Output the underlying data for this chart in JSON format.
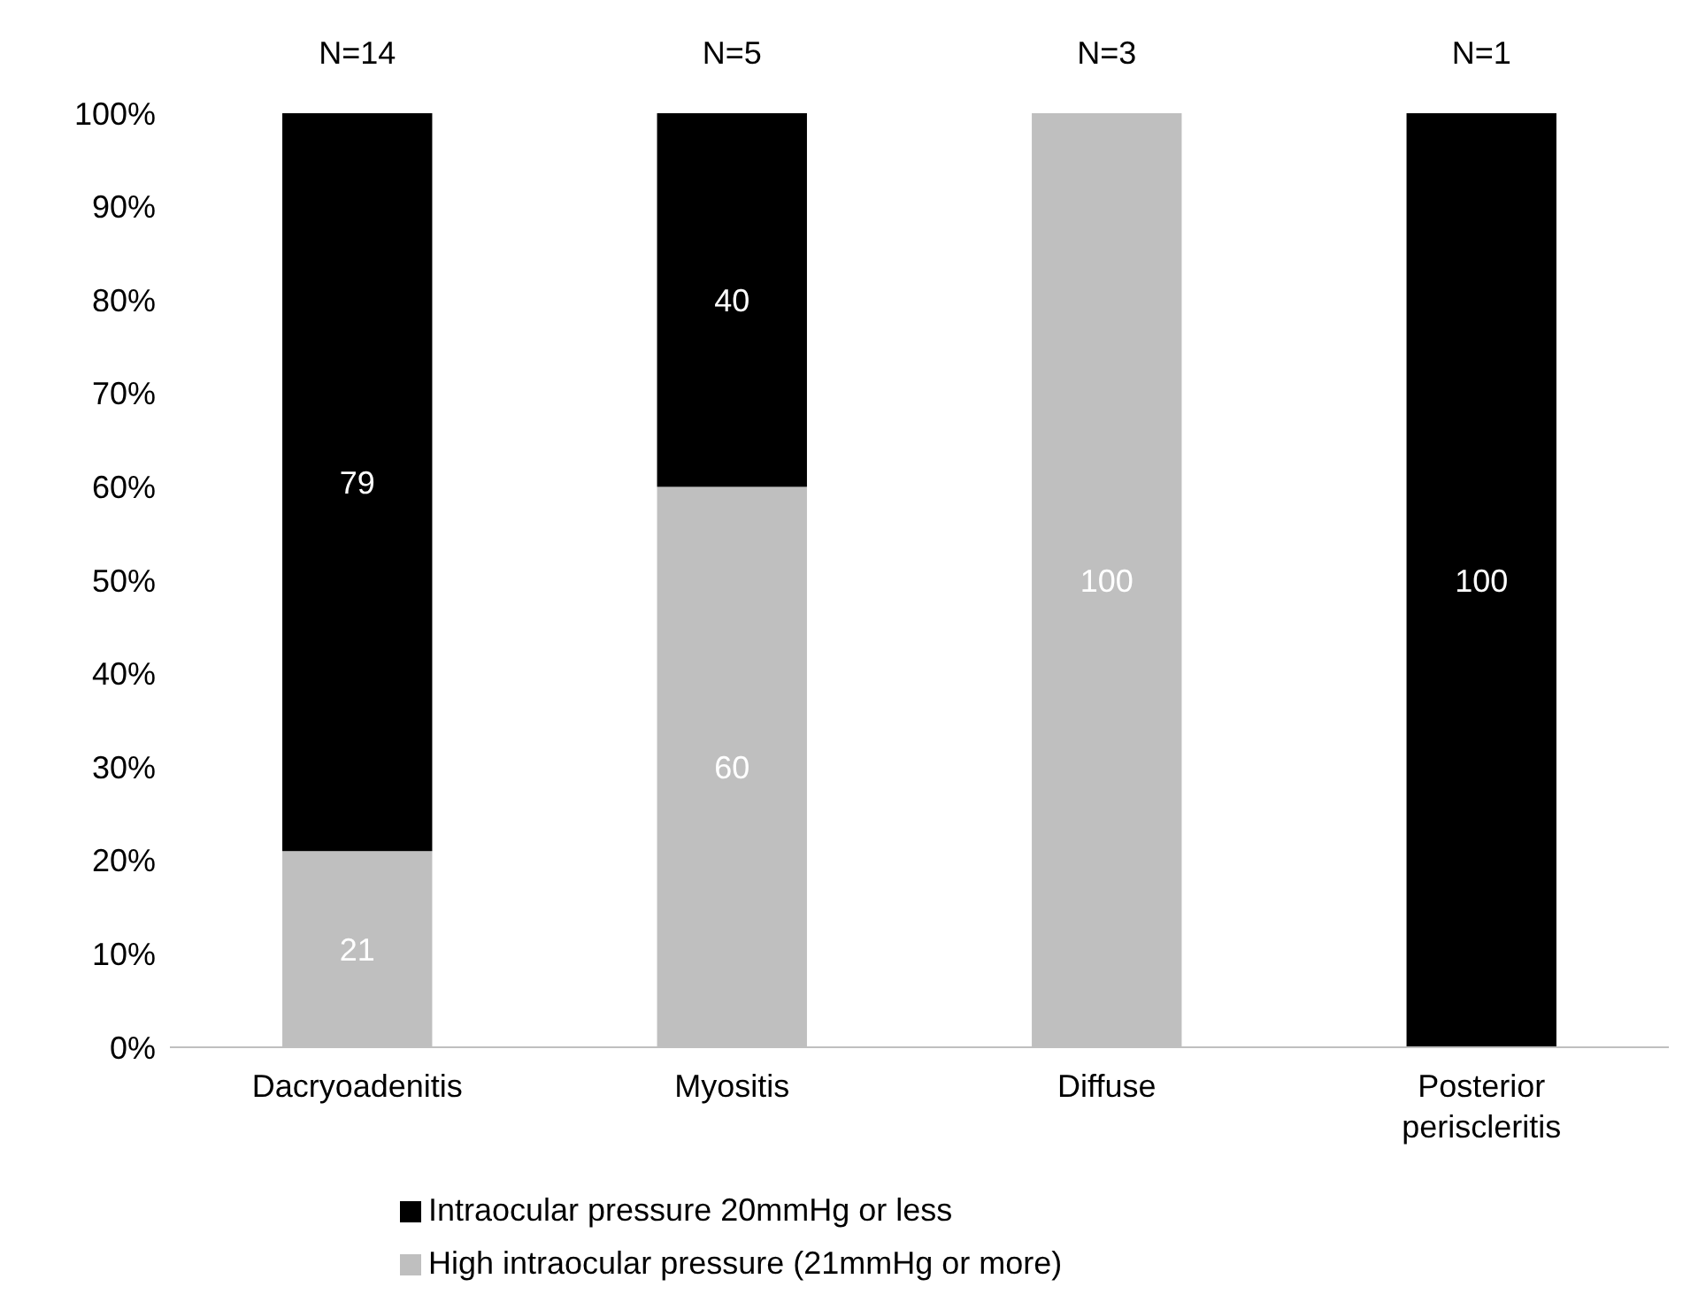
{
  "chart_data": {
    "type": "bar",
    "stacked": true,
    "categories": [
      "Dacryoadenitis",
      "Myositis",
      "Diffuse",
      "Posterior periscleritis"
    ],
    "series": [
      {
        "name": "High intraocular pressure (21mmHg or more)",
        "color": "#bfbfbf",
        "values": [
          21,
          60,
          100,
          0
        ],
        "value_labels": [
          "21",
          "60",
          "100",
          null
        ]
      },
      {
        "name": "Intraocular pressure 20mmHg or less",
        "color": "#000000",
        "values": [
          79,
          40,
          0,
          100
        ],
        "value_labels": [
          "79",
          "40",
          null,
          "100"
        ]
      }
    ],
    "ylim": [
      0,
      100
    ],
    "yticks": [
      {
        "value": 0,
        "label": "0%"
      },
      {
        "value": 10,
        "label": "10%"
      },
      {
        "value": 20,
        "label": "20%"
      },
      {
        "value": 30,
        "label": "30%"
      },
      {
        "value": 40,
        "label": "40%"
      },
      {
        "value": 50,
        "label": "50%"
      },
      {
        "value": 60,
        "label": "60%"
      },
      {
        "value": 70,
        "label": "70%"
      },
      {
        "value": 80,
        "label": "80%"
      },
      {
        "value": 90,
        "label": "90%"
      },
      {
        "value": 100,
        "label": "100%"
      }
    ],
    "legend": "bottom",
    "annotations": [
      {
        "text": "N=14",
        "x": "Dacryoadenitis",
        "y": 100
      },
      {
        "text": "N=5",
        "x": "Myositis",
        "y": 100
      },
      {
        "text": "N=3",
        "x": "Diffuse",
        "y": 100
      },
      {
        "text": "N=1",
        "x": "Posterior periscleritis",
        "y": 100
      }
    ]
  }
}
